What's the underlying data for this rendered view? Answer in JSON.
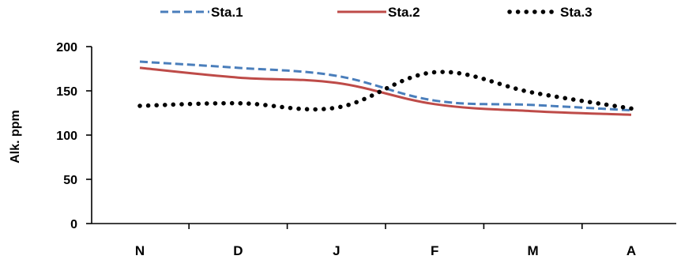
{
  "chart_data": {
    "type": "line",
    "title": "",
    "xlabel": "",
    "ylabel": "Alk. ppm",
    "categories": [
      "N",
      "D",
      "J",
      "F",
      "M",
      "A"
    ],
    "ylim": [
      0,
      200
    ],
    "yticks": [
      0,
      50,
      100,
      150,
      200
    ],
    "grid": false,
    "legend_position": "top",
    "series": [
      {
        "name": "Sta.1",
        "values": [
          183,
          176,
          167,
          139,
          134,
          128
        ],
        "color": "#4a7ebb",
        "line_style": "dashed"
      },
      {
        "name": "Sta.2",
        "values": [
          176,
          165,
          159,
          135,
          127,
          123
        ],
        "color": "#be4b48",
        "line_style": "solid"
      },
      {
        "name": "Sta.3",
        "values": [
          133,
          136,
          131,
          171,
          148,
          130
        ],
        "color": "#000000",
        "line_style": "dotted"
      }
    ]
  }
}
